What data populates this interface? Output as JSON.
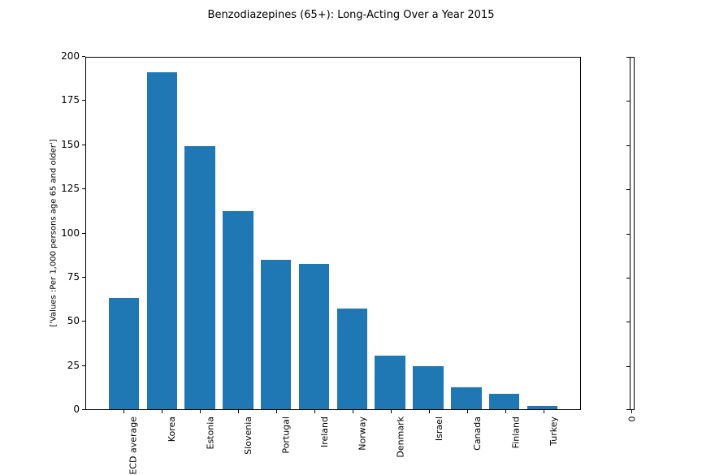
{
  "chart": {
    "title": "Benzodiazepines (65+): Long-Acting Over a Year 2015",
    "ylabel": "['Values :Per 1,000 persons age 65 and older']",
    "secondary_axis_bottom_label": "0"
  },
  "chart_data": {
    "type": "bar",
    "title": "Benzodiazepines (65+): Long-Acting Over a Year 2015",
    "ylabel": "['Values :Per 1,000 persons age 65 and older']",
    "xlabel": "",
    "categories": [
      "ECD average",
      "Korea",
      "Estonia",
      "Slovenia",
      "Portugal",
      "Ireland",
      "Norway",
      "Denmark",
      "Israel",
      "Canada",
      "Finland",
      "Turkey"
    ],
    "values": [
      63.5,
      191.5,
      149.5,
      112.5,
      85,
      82.5,
      57.5,
      30.5,
      24.5,
      12.5,
      9,
      2
    ],
    "ylim": [
      0,
      200
    ],
    "yticks": [
      0,
      25,
      50,
      75,
      100,
      125,
      150,
      175,
      200
    ],
    "bar_color": "#1f77b4",
    "grid": false,
    "legend": false,
    "x_tick_rotation": 90,
    "secondary_axis": {
      "yticks_count": 9,
      "xtick_label": "0"
    }
  }
}
